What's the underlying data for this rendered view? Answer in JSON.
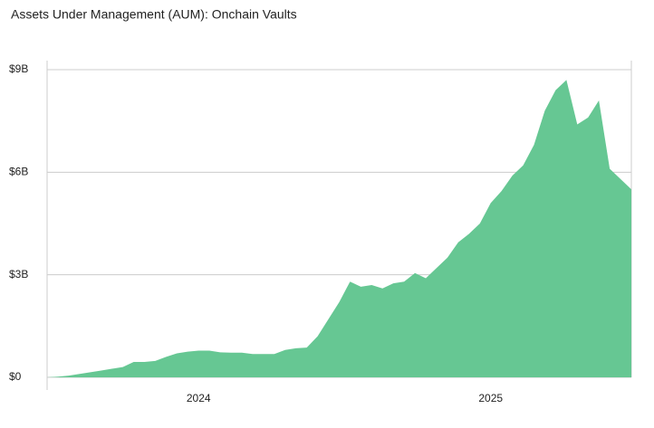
{
  "chart_data": {
    "type": "area",
    "title": "Assets Under Management (AUM): Onchain Vaults",
    "categories": [
      null,
      null,
      null,
      null,
      null,
      null,
      null,
      null,
      null,
      null,
      null,
      null,
      null,
      null,
      "2024",
      null,
      null,
      null,
      null,
      null,
      null,
      null,
      null,
      null,
      null,
      null,
      null,
      null,
      null,
      null,
      null,
      null,
      null,
      null,
      null,
      null,
      null,
      null,
      null,
      null,
      null,
      "2025",
      null,
      null,
      null,
      null,
      null,
      null,
      null,
      null,
      null,
      null,
      null,
      null,
      null
    ],
    "values": [
      0,
      0.02,
      0.05,
      0.1,
      0.15,
      0.2,
      0.25,
      0.3,
      0.45,
      0.45,
      0.48,
      0.6,
      0.7,
      0.75,
      0.78,
      0.78,
      0.73,
      0.72,
      0.72,
      0.68,
      0.68,
      0.68,
      0.8,
      0.85,
      0.87,
      1.2,
      1.7,
      2.2,
      2.8,
      2.65,
      2.7,
      2.6,
      2.75,
      2.8,
      3.05,
      2.9,
      3.2,
      3.5,
      3.95,
      4.2,
      4.5,
      5.1,
      5.45,
      5.9,
      6.2,
      6.8,
      7.8,
      8.4,
      8.7,
      7.4,
      7.6,
      8.1,
      6.1,
      5.8,
      5.5
    ],
    "color": "#66c793",
    "ylim": [
      0,
      9
    ],
    "yticks": [
      {
        "value": 0,
        "label": "$0"
      },
      {
        "value": 3,
        "label": "$3B"
      },
      {
        "value": 6,
        "label": "$6B"
      },
      {
        "value": 9,
        "label": "$9B"
      }
    ],
    "grid": true
  }
}
